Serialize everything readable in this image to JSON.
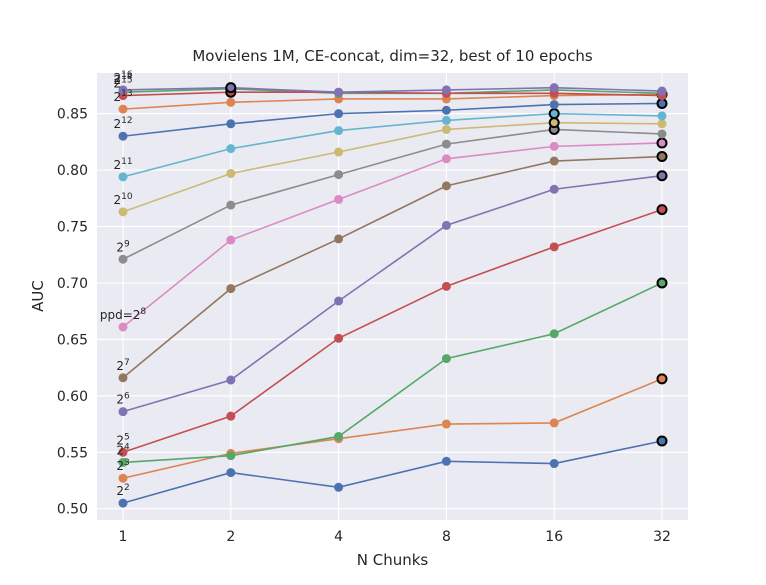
{
  "chart_data": {
    "type": "line",
    "title": "Movielens 1M, CE-concat, dim=32, best of 10 epochs",
    "xlabel": "N Chunks",
    "ylabel": "AUC",
    "x": [
      1,
      2,
      4,
      8,
      16,
      32
    ],
    "x_scale": "log2",
    "ylim": [
      0.49,
      0.886
    ],
    "yticks": [
      "0.50",
      "0.55",
      "0.60",
      "0.65",
      "0.70",
      "0.75",
      "0.80",
      "0.85"
    ],
    "grid": true,
    "best_marker": "black-edged marker on each series' best point",
    "series": [
      {
        "name": "2^2",
        "label_prefix": "",
        "label_exp": "2",
        "color": "#4c72b0",
        "values": [
          0.505,
          0.532,
          0.519,
          0.542,
          0.54,
          0.56
        ]
      },
      {
        "name": "2^3",
        "label_prefix": "",
        "label_exp": "3",
        "color": "#dd8452",
        "values": [
          0.527,
          0.549,
          0.562,
          0.575,
          0.576,
          0.615
        ]
      },
      {
        "name": "2^4",
        "label_prefix": "",
        "label_exp": "4",
        "color": "#55a868",
        "values": [
          0.541,
          0.547,
          0.564,
          0.633,
          0.655,
          0.7
        ]
      },
      {
        "name": "2^5",
        "label_prefix": "",
        "label_exp": "5",
        "color": "#c44e52",
        "values": [
          0.55,
          0.582,
          0.651,
          0.697,
          0.732,
          0.765
        ]
      },
      {
        "name": "2^6",
        "label_prefix": "",
        "label_exp": "6",
        "color": "#8172b3",
        "values": [
          0.586,
          0.614,
          0.684,
          0.751,
          0.783,
          0.795
        ]
      },
      {
        "name": "2^7",
        "label_prefix": "",
        "label_exp": "7",
        "color": "#937860",
        "values": [
          0.616,
          0.695,
          0.739,
          0.786,
          0.808,
          0.812
        ]
      },
      {
        "name": "ppd=2^8",
        "label_prefix": "ppd=",
        "label_exp": "8",
        "color": "#da8bc3",
        "values": [
          0.661,
          0.738,
          0.774,
          0.81,
          0.821,
          0.824
        ]
      },
      {
        "name": "2^9",
        "label_prefix": "",
        "label_exp": "9",
        "color": "#8c8c8c",
        "values": [
          0.721,
          0.769,
          0.796,
          0.823,
          0.836,
          0.832
        ]
      },
      {
        "name": "2^10",
        "label_prefix": "",
        "label_exp": "10",
        "color": "#ccb974",
        "values": [
          0.763,
          0.797,
          0.816,
          0.836,
          0.842,
          0.841
        ]
      },
      {
        "name": "2^11",
        "label_prefix": "",
        "label_exp": "11",
        "color": "#64b5cd",
        "values": [
          0.794,
          0.819,
          0.835,
          0.844,
          0.85,
          0.848
        ]
      },
      {
        "name": "2^12",
        "label_prefix": "",
        "label_exp": "12",
        "color": "#4c72b0",
        "values": [
          0.83,
          0.841,
          0.85,
          0.853,
          0.858,
          0.859
        ]
      },
      {
        "name": "2^13",
        "label_prefix": "",
        "label_exp": "13",
        "color": "#dd8452",
        "values": [
          0.854,
          0.86,
          0.863,
          0.863,
          0.866,
          0.867
        ]
      },
      {
        "name": "2^14",
        "label_prefix": "",
        "label_exp": "14",
        "color": "#55a868",
        "values": [
          0.869,
          0.872,
          0.868,
          0.868,
          0.871,
          0.868
        ]
      },
      {
        "name": "2^15",
        "label_prefix": "",
        "label_exp": "15",
        "color": "#c44e52",
        "values": [
          0.866,
          0.869,
          0.869,
          0.868,
          0.868,
          0.866
        ]
      },
      {
        "name": "2^16",
        "label_prefix": "",
        "label_exp": "16",
        "color": "#8172b3",
        "values": [
          0.871,
          0.873,
          0.869,
          0.871,
          0.873,
          0.87
        ]
      }
    ]
  }
}
